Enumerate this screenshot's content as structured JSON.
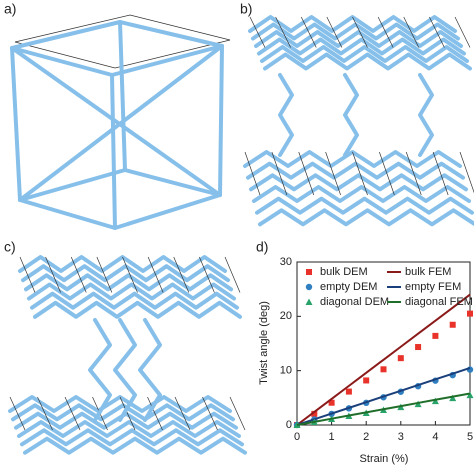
{
  "panels": [
    "a)",
    "b)",
    "c)",
    "d)"
  ],
  "chart_data": {
    "type": "line",
    "xlabel": "Strain (%)",
    "ylabel": "Twist angle (deg)",
    "xlim": [
      0,
      5
    ],
    "ylim": [
      0,
      30
    ],
    "xticks": [
      0,
      1,
      2,
      3,
      4,
      5
    ],
    "yticks": [
      0,
      10,
      20,
      30
    ],
    "legend": "upper left",
    "x": [
      0,
      0.5,
      1,
      1.5,
      2,
      2.5,
      3,
      3.5,
      4,
      4.5,
      5
    ],
    "series": [
      {
        "name": "bulk DEM",
        "color": "#e8322a",
        "marker": "square",
        "values": [
          0,
          2.05,
          4.1,
          6.15,
          8.2,
          10.25,
          12.3,
          14.35,
          16.4,
          18.45,
          20.5
        ]
      },
      {
        "name": "bulk FEM",
        "color": "#8b1a1a",
        "values": [
          0,
          2.4,
          4.8,
          7.2,
          9.6,
          12,
          14.4,
          16.8,
          19.2,
          21.6,
          24
        ]
      },
      {
        "name": "empty DEM",
        "color": "#2f7fc1",
        "marker": "circle",
        "values": [
          0,
          1.02,
          2.04,
          3.06,
          4.08,
          5.1,
          6.12,
          7.14,
          8.16,
          9.18,
          10.2
        ]
      },
      {
        "name": "empty FEM",
        "color": "#1a3f7a",
        "values": [
          0,
          1.05,
          2.1,
          3.15,
          4.2,
          5.25,
          6.3,
          7.35,
          8.4,
          9.45,
          10.5
        ]
      },
      {
        "name": "diagonal DEM",
        "color": "#2aa36b",
        "marker": "triangle",
        "values": [
          0,
          0.55,
          1.1,
          1.65,
          2.2,
          2.75,
          3.3,
          3.85,
          4.4,
          4.95,
          5.5
        ]
      },
      {
        "name": "diagonal FEM",
        "color": "#1f6f2a",
        "values": [
          0,
          0.58,
          1.16,
          1.74,
          2.32,
          2.9,
          3.48,
          4.06,
          4.64,
          5.22,
          5.8
        ]
      }
    ]
  }
}
